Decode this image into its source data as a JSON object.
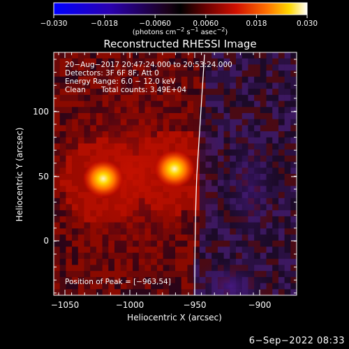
{
  "colorbar": {
    "ticks": [
      "−0.030",
      "−0.018",
      "−0.0060",
      "0.0060",
      "0.018",
      "0.030"
    ],
    "unit_prefix": "(photons cm",
    "unit_exp1": "−2",
    "unit_mid": " s",
    "unit_exp2": "−1",
    "unit_mid2": " asec",
    "unit_exp3": "−2",
    "unit_suffix": ")"
  },
  "plot": {
    "title": "Reconstructed RHESSI Image",
    "info_line1": "20−Aug−2017 20:47:24.000 to 20:53:24.000",
    "info_line2": "Detectors: 3F 6F 8F, Att 0",
    "info_line3": "Energy Range: 6.0 − 12.0 keV",
    "info_line4_a": "Clean",
    "info_line4_b": "Total counts: 3.49E+04",
    "peak_label": "Position of Peak = [−963,54]",
    "xlabel": "Heliocentric X (arcsec)",
    "ylabel": "Heliocentric Y (arcsec)",
    "xticks": [
      "−1050",
      "−1000",
      "−950",
      "−900"
    ],
    "yticks": [
      "100",
      "50",
      "0"
    ]
  },
  "footer": {
    "date": "6−Sep−2022 08:33"
  }
}
